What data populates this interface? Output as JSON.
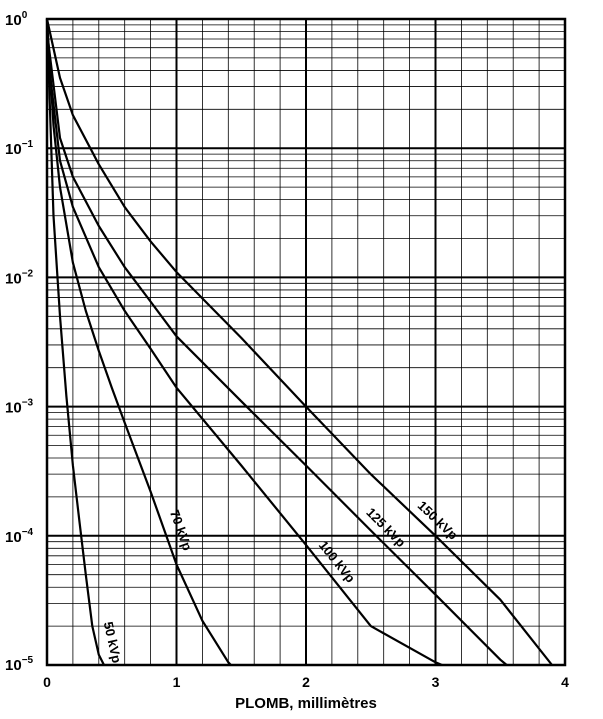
{
  "chart_data": {
    "type": "line",
    "xlabel": "PLOMB, millimètres",
    "ylabel": "",
    "title": "",
    "xlim": [
      0,
      4
    ],
    "ylim": [
      1e-05,
      1
    ],
    "yscale": "log",
    "grid": true,
    "x_ticks": [
      "0",
      "1",
      "2",
      "3",
      "4"
    ],
    "y_ticks": [
      {
        "base": "10",
        "exp": "0"
      },
      {
        "base": "10",
        "exp": "−1"
      },
      {
        "base": "10",
        "exp": "−2"
      },
      {
        "base": "10",
        "exp": "−3"
      },
      {
        "base": "10",
        "exp": "−4"
      },
      {
        "base": "10",
        "exp": "−5"
      }
    ],
    "series": [
      {
        "name": "50 kVp",
        "x": [
          0,
          0.05,
          0.1,
          0.15,
          0.2,
          0.25,
          0.3,
          0.35,
          0.4,
          0.44
        ],
        "y": [
          1,
          0.03,
          0.005,
          0.0012,
          0.00035,
          0.00013,
          5e-05,
          2e-05,
          1.2e-05,
          1e-05
        ]
      },
      {
        "name": "70 kVp",
        "x": [
          0,
          0.05,
          0.1,
          0.2,
          0.3,
          0.4,
          0.5,
          0.6,
          0.8,
          1.0,
          1.2,
          1.4,
          1.42
        ],
        "y": [
          1,
          0.15,
          0.05,
          0.013,
          0.0055,
          0.0027,
          0.0014,
          0.00075,
          0.00022,
          6e-05,
          2.2e-05,
          1.05e-05,
          1e-05
        ]
      },
      {
        "name": "100 kVp",
        "x": [
          0,
          0.1,
          0.2,
          0.4,
          0.6,
          0.8,
          1.0,
          1.5,
          2.0,
          2.5,
          3.0,
          3.05
        ],
        "y": [
          0.6,
          0.08,
          0.035,
          0.012,
          0.0055,
          0.0028,
          0.0014,
          0.00035,
          8.5e-05,
          2e-05,
          1.05e-05,
          1e-05
        ]
      },
      {
        "name": "125 kVp",
        "x": [
          0,
          0.1,
          0.2,
          0.4,
          0.6,
          0.8,
          1.0,
          1.5,
          2.0,
          2.5,
          3.0,
          3.5,
          3.55
        ],
        "y": [
          0.8,
          0.12,
          0.06,
          0.025,
          0.012,
          0.0065,
          0.0035,
          0.0011,
          0.00035,
          0.00011,
          3.5e-05,
          1.1e-05,
          1e-05
        ]
      },
      {
        "name": "150 kVp",
        "x": [
          0,
          0.1,
          0.2,
          0.4,
          0.6,
          0.8,
          1.0,
          1.5,
          2.0,
          2.5,
          3.0,
          3.5,
          3.9
        ],
        "y": [
          1,
          0.35,
          0.18,
          0.075,
          0.035,
          0.019,
          0.011,
          0.0034,
          0.001,
          0.0003,
          0.0001,
          3.2e-05,
          1e-05
        ]
      }
    ]
  }
}
